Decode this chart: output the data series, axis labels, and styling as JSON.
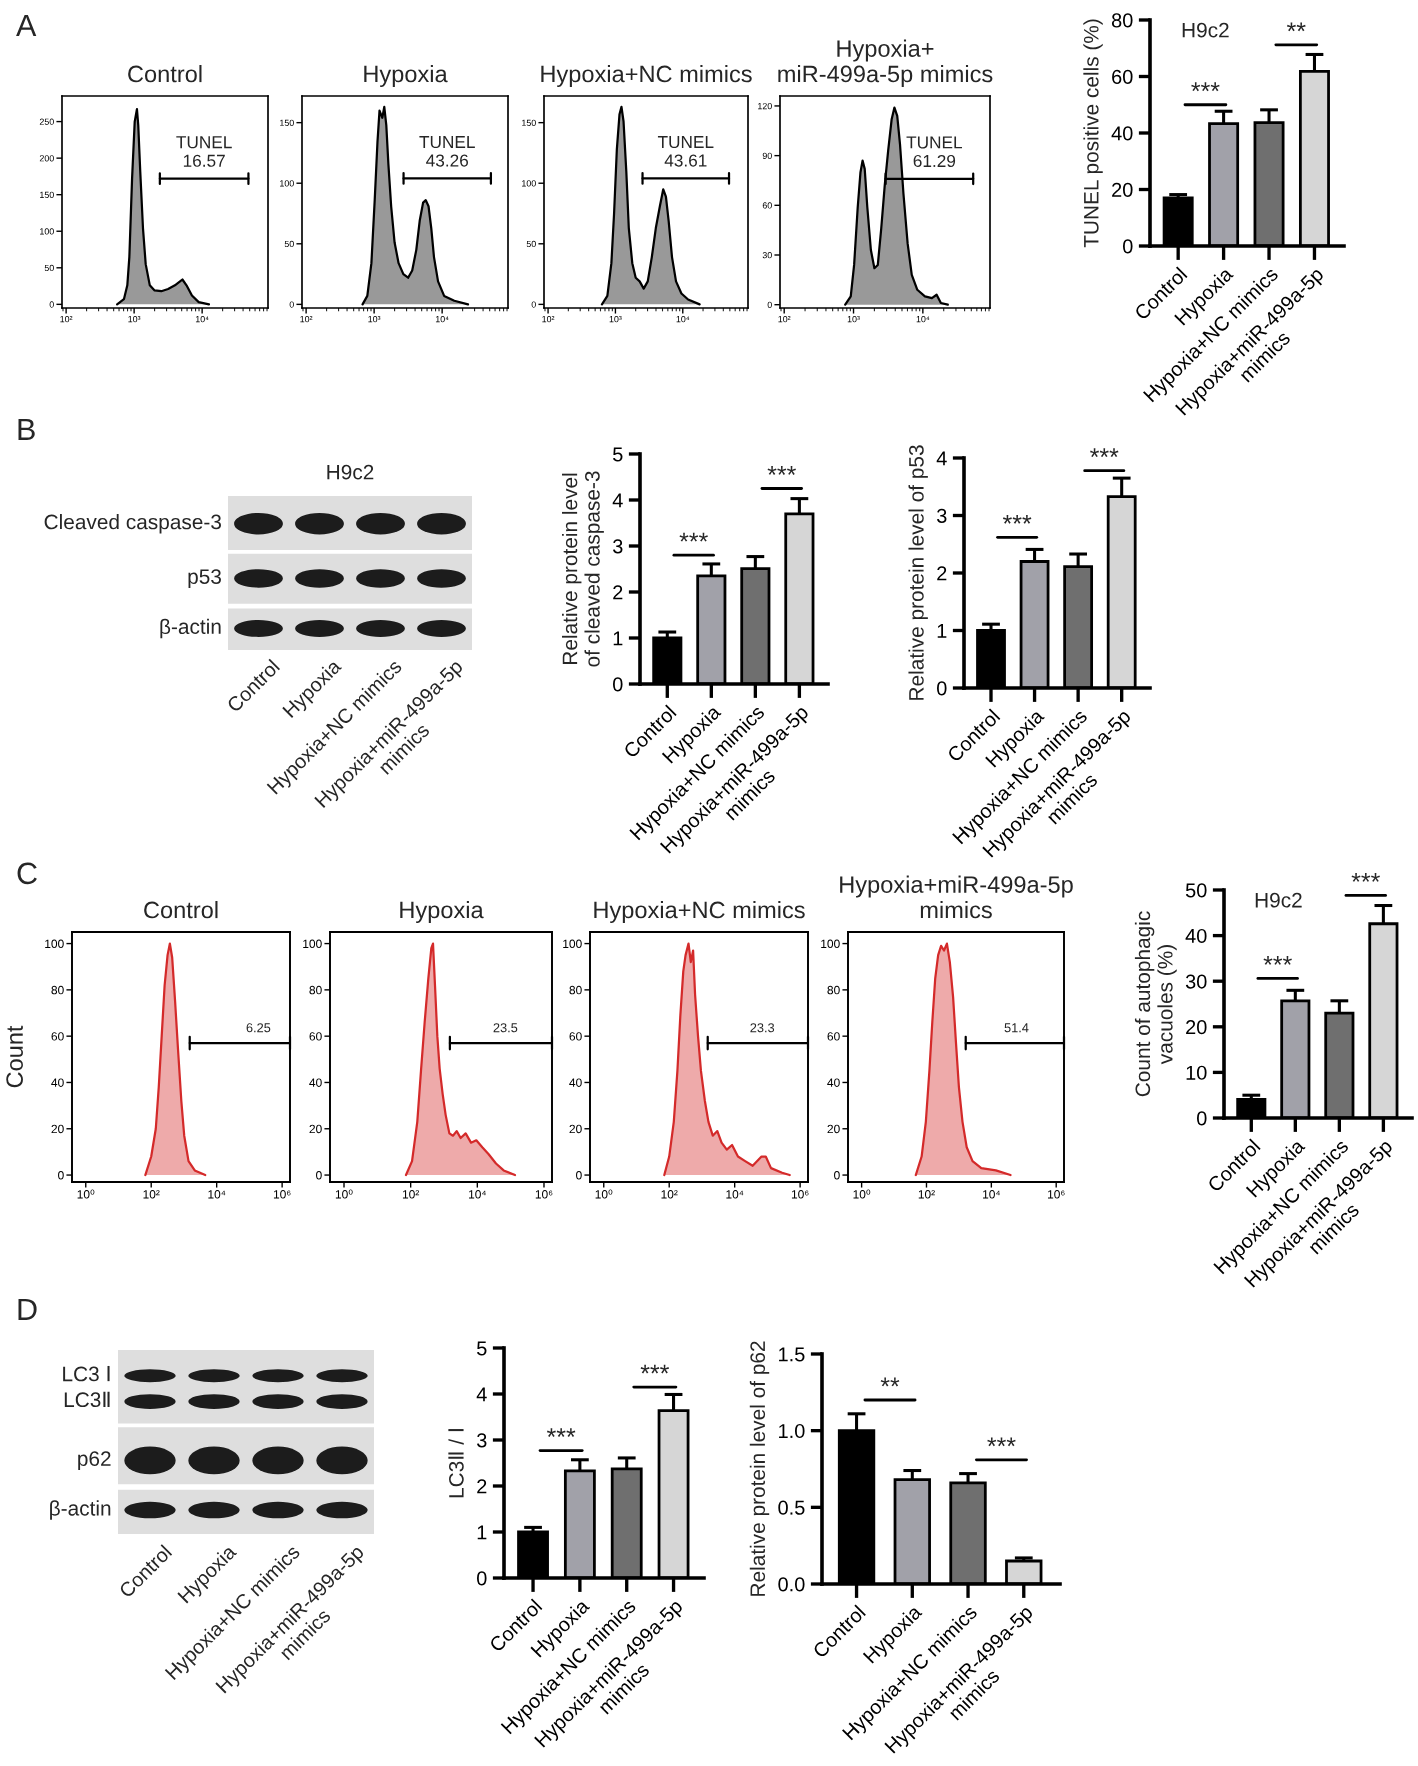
{
  "chart_data": [
    {
      "type": "area",
      "title": "Control",
      "annotations": [
        "A"
      ],
      "log": "x",
      "xlim": [
        87,
        93000
      ],
      "xticks": [
        {
          "value": 100,
          "label": "10²"
        },
        {
          "value": 1000,
          "label": "10³"
        },
        {
          "value": 10000,
          "label": "10⁴"
        }
      ],
      "ylim": [
        -5,
        285
      ],
      "yticks": [
        0,
        50,
        100,
        150,
        200,
        250
      ],
      "color": "#000000",
      "x": [
        562,
        708,
        794,
        851,
        933,
        1020,
        1100,
        1150,
        1230,
        1350,
        1480,
        1700,
        2000,
        2510,
        3160,
        3980,
        4680,
        5130,
        5890,
        7080,
        8910,
        12600
      ],
      "values": [
        0,
        7,
        26,
        65,
        172,
        250,
        267,
        245,
        182,
        104,
        55,
        26,
        19,
        18,
        21,
        26,
        31,
        34,
        26,
        12,
        3,
        0
      ],
      "ref_lines": [
        {
          "axis": "y",
          "value": 172,
          "label": "TUNEL\n16.57"
        }
      ]
    },
    {
      "type": "area",
      "title": "Hypoxia",
      "log": "x",
      "xlim": [
        87,
        93000
      ],
      "xticks": [
        {
          "value": 100,
          "label": "10²"
        },
        {
          "value": 1000,
          "label": "10³"
        },
        {
          "value": 10000,
          "label": "10⁴"
        }
      ],
      "ylim": [
        -3,
        172
      ],
      "yticks": [
        0,
        50,
        100,
        150
      ],
      "color": "#000000",
      "x": [
        676,
        794,
        912,
        1020,
        1120,
        1200,
        1320,
        1410,
        1510,
        1620,
        1780,
        2000,
        2290,
        2690,
        3160,
        3630,
        4170,
        4680,
        5250,
        5750,
        6310,
        6920,
        7590,
        8710,
        10700,
        15100,
        24000
      ],
      "values": [
        0,
        7,
        34,
        86,
        134,
        160,
        154,
        163,
        148,
        116,
        81,
        51,
        34,
        25,
        22,
        28,
        45,
        69,
        84,
        86,
        81,
        63,
        39,
        19,
        7,
        3,
        0
      ],
      "ref_lines": [
        {
          "axis": "y",
          "value": 104,
          "label": "TUNEL\n43.26"
        }
      ]
    },
    {
      "type": "area",
      "title": "Hypoxia+NC mimics",
      "log": "x",
      "xlim": [
        87,
        93000
      ],
      "xticks": [
        {
          "value": 100,
          "label": "10²"
        },
        {
          "value": 1000,
          "label": "10³"
        },
        {
          "value": 10000,
          "label": "10⁴"
        }
      ],
      "ylim": [
        -3,
        172
      ],
      "yticks": [
        0,
        50,
        100,
        150
      ],
      "color": "#000000",
      "x": [
        631,
        759,
        871,
        955,
        1050,
        1150,
        1230,
        1320,
        1450,
        1580,
        1780,
        2000,
        2290,
        2630,
        3020,
        3470,
        3980,
        4570,
        5130,
        5620,
        6170,
        6920,
        7940,
        9550,
        12000,
        17800
      ],
      "values": [
        0,
        7,
        34,
        75,
        128,
        157,
        163,
        151,
        110,
        63,
        34,
        22,
        19,
        13,
        19,
        39,
        63,
        81,
        95,
        89,
        69,
        39,
        19,
        9,
        4,
        0
      ],
      "ref_lines": [
        {
          "axis": "y",
          "value": 104,
          "label": "TUNEL\n43.61"
        }
      ]
    },
    {
      "type": "area",
      "title": "Hypoxia+\nmiR-499a-5p mimics",
      "log": "x",
      "xlim": [
        87,
        93000
      ],
      "xticks": [
        {
          "value": 100,
          "label": "10²"
        },
        {
          "value": 1000,
          "label": "10³"
        },
        {
          "value": 10000,
          "label": "10⁴"
        }
      ],
      "ylim": [
        -2,
        126
      ],
      "yticks": [
        0,
        30,
        60,
        90,
        120
      ],
      "color": "#000000",
      "x": [
        759,
        912,
        1020,
        1150,
        1260,
        1350,
        1450,
        1580,
        1780,
        2000,
        2240,
        2510,
        2820,
        3160,
        3550,
        3890,
        4270,
        4680,
        5250,
        6030,
        6920,
        8320,
        10700,
        13500,
        15800,
        18200,
        22900
      ],
      "values": [
        0,
        5,
        24,
        59,
        80,
        87,
        82,
        59,
        33,
        22,
        24,
        46,
        72,
        93,
        112,
        119,
        114,
        97,
        67,
        37,
        18,
        9,
        5,
        4,
        6,
        1,
        0
      ],
      "ref_lines": [
        {
          "axis": "y",
          "value": 76,
          "label": "TUNEL\n61.29"
        }
      ]
    },
    {
      "type": "bar",
      "title": "H9c2",
      "ylabel": "TUNEL positive cells (%)",
      "categories": [
        "Control",
        "Hypoxia",
        "Hypoxia+NC mimics",
        "Hypoxia+miR-499a-5p\nmimics"
      ],
      "colors": [
        "#000000",
        "#a1a1a9",
        "#6f6f6f",
        "#d6d6d6"
      ],
      "values": [
        17,
        43.3,
        43.7,
        61.8
      ],
      "errors": [
        1.2,
        4.4,
        4.5,
        6.0
      ],
      "ylim": [
        0,
        80
      ],
      "yticks": [
        0,
        20,
        40,
        60,
        80
      ],
      "annotations": [
        "***",
        "**"
      ]
    },
    {
      "type": "other",
      "title": "H9c2",
      "annotations": [
        "B"
      ],
      "categories": [
        "Control",
        "Hypoxia",
        "Hypoxia+NC mimics",
        "Hypoxia+miR-499a-5p\nmimics"
      ],
      "y_categories": [
        "Cleaved caspase-3",
        "p53",
        "β-actin"
      ]
    },
    {
      "type": "bar",
      "ylabel": "Relative protein level\nof cleaved caspase-3",
      "categories": [
        "Control",
        "Hypoxia",
        "Hypoxia+NC mimics",
        "Hypoxia+miR-499a-5p\nmimics"
      ],
      "colors": [
        "#000000",
        "#a1a1a9",
        "#6f6f6f",
        "#d6d6d6"
      ],
      "values": [
        1.0,
        2.35,
        2.51,
        3.7
      ],
      "errors": [
        0.13,
        0.26,
        0.26,
        0.33
      ],
      "ylim": [
        0,
        5
      ],
      "yticks": [
        0,
        1,
        2,
        3,
        4,
        5
      ],
      "annotations": [
        "***",
        "***"
      ]
    },
    {
      "type": "bar",
      "ylabel": "Relative protein level of p53",
      "categories": [
        "Control",
        "Hypoxia",
        "Hypoxia+NC mimics",
        "Hypoxia+miR-499a-5p\nmimics"
      ],
      "colors": [
        "#000000",
        "#a1a1a9",
        "#6f6f6f",
        "#d6d6d6"
      ],
      "values": [
        1.0,
        2.2,
        2.11,
        3.33
      ],
      "errors": [
        0.11,
        0.21,
        0.22,
        0.32
      ],
      "ylim": [
        0,
        4
      ],
      "yticks": [
        0,
        1,
        2,
        3,
        4
      ],
      "annotations": [
        "***",
        "***"
      ]
    },
    {
      "type": "area",
      "title": "Control",
      "annotations": [
        "C",
        "6.25"
      ],
      "ylabel": "Count",
      "log": "x",
      "xlim": [
        0.38,
        1740000
      ],
      "xticks": [
        {
          "value": 1,
          "label": "10⁰"
        },
        {
          "value": 100,
          "label": "10²"
        },
        {
          "value": 10000,
          "label": "10⁴"
        },
        {
          "value": 1000000,
          "label": "10⁶"
        }
      ],
      "ylim": [
        -3,
        105
      ],
      "yticks": [
        0,
        20,
        40,
        60,
        80,
        100
      ],
      "color": "#d42a2a",
      "x": [
        66.1,
        100,
        138,
        170,
        209,
        257,
        316,
        372,
        437,
        537,
        661,
        832,
        1020,
        1380,
        2140,
        4470
      ],
      "values": [
        0,
        8,
        20,
        38,
        60,
        82,
        95,
        100,
        94,
        75,
        54,
        32,
        17,
        6,
        2,
        0
      ],
      "ref_lines": [
        {
          "axis": "y",
          "value": 57
        }
      ]
    },
    {
      "type": "area",
      "title": "Hypoxia",
      "annotations": [
        "23.5"
      ],
      "log": "x",
      "xlim": [
        0.38,
        1740000
      ],
      "xticks": [
        {
          "value": 1,
          "label": "10⁰"
        },
        {
          "value": 100,
          "label": "10²"
        },
        {
          "value": 10000,
          "label": "10⁴"
        },
        {
          "value": 1000000,
          "label": "10⁶"
        }
      ],
      "ylim": [
        -3,
        105
      ],
      "yticks": [
        0,
        20,
        40,
        60,
        80,
        100
      ],
      "color": "#d42a2a",
      "x": [
        72.4,
        110,
        158,
        204,
        263,
        339,
        417,
        468,
        537,
        631,
        741,
        912,
        1120,
        1450,
        1860,
        2400,
        3160,
        4470,
        6460,
        9330,
        14100,
        21900,
        36300,
        61700,
        135000
      ],
      "values": [
        0,
        6,
        23,
        45,
        66,
        85,
        98,
        100,
        82,
        60,
        46,
        35,
        26,
        18,
        17,
        19,
        16,
        18,
        14,
        15,
        12,
        9,
        5,
        2,
        0
      ],
      "ref_lines": [
        {
          "axis": "y",
          "value": 57
        }
      ]
    },
    {
      "type": "area",
      "title": "Hypoxia+NC mimics",
      "annotations": [
        "23.3"
      ],
      "log": "x",
      "xlim": [
        0.38,
        1740000
      ],
      "xticks": [
        {
          "value": 1,
          "label": "10⁰"
        },
        {
          "value": 100,
          "label": "10²"
        },
        {
          "value": 10000,
          "label": "10⁴"
        },
        {
          "value": 1000000,
          "label": "10⁶"
        }
      ],
      "ylim": [
        -3,
        105
      ],
      "yticks": [
        0,
        20,
        40,
        60,
        80,
        100
      ],
      "color": "#d42a2a",
      "x": [
        70.8,
        100,
        138,
        178,
        219,
        269,
        316,
        389,
        457,
        537,
        617,
        759,
        933,
        1230,
        1580,
        2140,
        2950,
        3980,
        5750,
        8320,
        12600,
        20900,
        35500,
        66100,
        89100,
        129000,
        282000,
        479000
      ],
      "values": [
        0,
        8,
        23,
        45,
        69,
        88,
        95,
        100,
        92,
        97,
        78,
        60,
        45,
        32,
        23,
        17,
        19,
        14,
        11,
        13,
        8,
        6,
        4,
        8,
        8,
        3,
        1,
        0
      ],
      "ref_lines": [
        {
          "axis": "y",
          "value": 57
        }
      ]
    },
    {
      "type": "area",
      "title": "Hypoxia+miR-499a-5p\nmimics",
      "annotations": [
        "51.4"
      ],
      "log": "x",
      "xlim": [
        0.38,
        1740000
      ],
      "xticks": [
        {
          "value": 1,
          "label": "10⁰"
        },
        {
          "value": 100,
          "label": "10²"
        },
        {
          "value": 10000,
          "label": "10⁴"
        },
        {
          "value": 1000000,
          "label": "10⁶"
        }
      ],
      "ylim": [
        -3,
        105
      ],
      "yticks": [
        0,
        20,
        40,
        60,
        80,
        100
      ],
      "color": "#d42a2a",
      "x": [
        46.8,
        70.8,
        95.5,
        123,
        151,
        186,
        229,
        282,
        347,
        427,
        525,
        661,
        813,
        1000,
        1290,
        1740,
        2630,
        4900,
        13800,
        38900
      ],
      "values": [
        0,
        8,
        23,
        45,
        66,
        85,
        95,
        99,
        97,
        100,
        92,
        77,
        57,
        38,
        23,
        12,
        6,
        3,
        2,
        0
      ],
      "ref_lines": [
        {
          "axis": "y",
          "value": 57
        }
      ]
    },
    {
      "type": "bar",
      "title": "H9c2",
      "ylabel": "Count of autophagic\nvacuoles (%)",
      "categories": [
        "Control",
        "Hypoxia",
        "Hypoxia+NC mimics",
        "Hypoxia+miR-499a-5p\nmimics"
      ],
      "colors": [
        "#000000",
        "#a1a1a9",
        "#6f6f6f",
        "#d6d6d6"
      ],
      "values": [
        4.1,
        25.7,
        23.0,
        42.6
      ],
      "errors": [
        0.9,
        2.3,
        2.7,
        4.0
      ],
      "ylim": [
        0,
        50
      ],
      "yticks": [
        0,
        10,
        20,
        30,
        40,
        50
      ],
      "annotations": [
        "***",
        "***"
      ]
    },
    {
      "type": "other",
      "annotations": [
        "D"
      ],
      "categories": [
        "Control",
        "Hypoxia",
        "Hypoxia+NC mimics",
        "Hypoxia+miR-499a-5p\nmimics"
      ],
      "y_categories": [
        "LC3 Ⅰ",
        "LC3Ⅱ",
        "p62",
        "β-actin"
      ]
    },
    {
      "type": "bar",
      "ylabel": "LC3Ⅱ / Ⅰ",
      "categories": [
        "Control",
        "Hypoxia",
        "Hypoxia+NC mimics",
        "Hypoxia+miR-499a-5p\nmimics"
      ],
      "colors": [
        "#000000",
        "#a1a1a9",
        "#6f6f6f",
        "#d6d6d6"
      ],
      "values": [
        1.0,
        2.33,
        2.37,
        3.64
      ],
      "errors": [
        0.1,
        0.24,
        0.24,
        0.35
      ],
      "ylim": [
        0,
        5
      ],
      "yticks": [
        0,
        1,
        2,
        3,
        4,
        5
      ],
      "annotations": [
        "***",
        "***"
      ]
    },
    {
      "type": "bar",
      "ylabel": "Relative protein level of p62",
      "categories": [
        "Control",
        "Hypoxia",
        "Hypoxia+NC mimics",
        "Hypoxia+miR-499a-5p\nmimics"
      ],
      "colors": [
        "#000000",
        "#a1a1a9",
        "#6f6f6f",
        "#d6d6d6"
      ],
      "values": [
        1.0,
        0.68,
        0.66,
        0.15
      ],
      "errors": [
        0.11,
        0.06,
        0.06,
        0.02
      ],
      "ylim": [
        0,
        1.5
      ],
      "yticks": [
        {
          "value": 0,
          "label": "0.0"
        },
        {
          "value": 0.5,
          "label": "0.5"
        },
        {
          "value": 1,
          "label": "1.0"
        },
        {
          "value": 1.5,
          "label": "1.5"
        }
      ],
      "annotations": [
        "**",
        "***"
      ]
    }
  ]
}
